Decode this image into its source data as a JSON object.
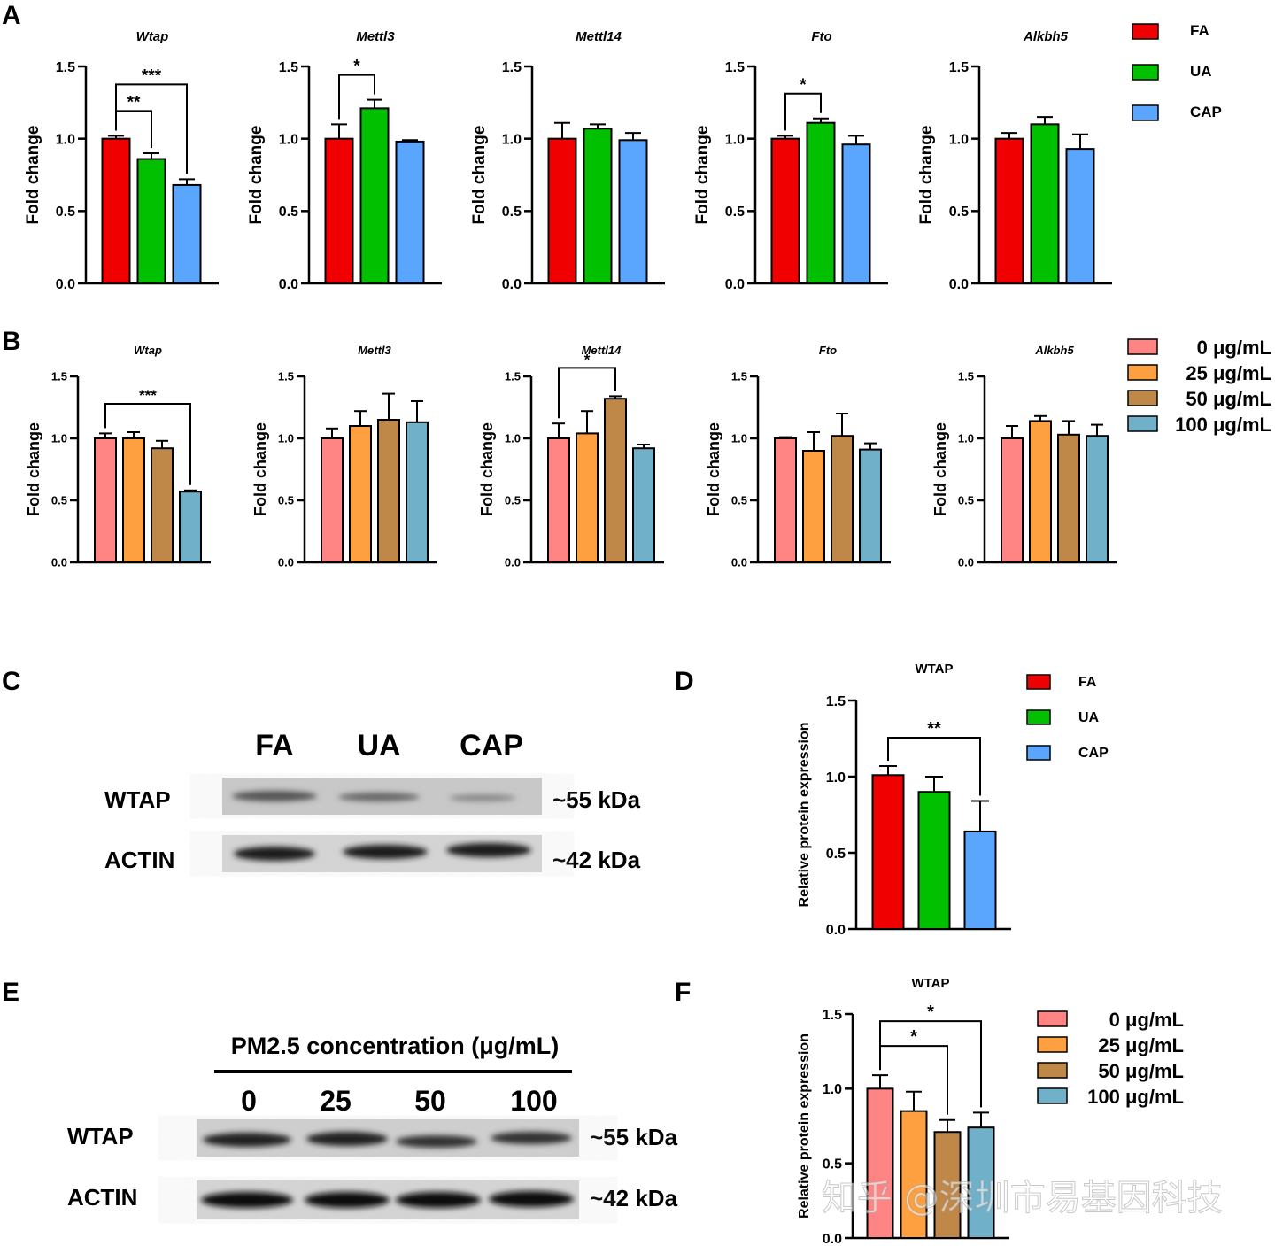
{
  "panels": [
    "A",
    "B",
    "C",
    "D",
    "E",
    "F"
  ],
  "colors": {
    "FA": "#f00000",
    "UA": "#00c000",
    "CAP": "#5aa6ff",
    "c0": "#ff8585",
    "c25": "#ffa040",
    "c50": "#c08848",
    "c100": "#70b0c8"
  },
  "chart_data": [
    {
      "type": "bar",
      "panel": "A",
      "ylabel": "Fold change",
      "ylim": [
        0,
        1.5
      ],
      "yticks": [
        "0.0",
        "0.5",
        "1.0",
        "1.5"
      ],
      "series_names": [
        "FA",
        "UA",
        "CAP"
      ],
      "groups": [
        {
          "title": "Wtap",
          "values": [
            1.0,
            0.86,
            0.68
          ],
          "errors": [
            0.02,
            0.04,
            0.04
          ],
          "sig": [
            {
              "from": 0,
              "to": 1,
              "label": "**"
            },
            {
              "from": 0,
              "to": 2,
              "label": "***"
            }
          ]
        },
        {
          "title": "Mettl3",
          "values": [
            1.0,
            1.21,
            0.98
          ],
          "errors": [
            0.1,
            0.06,
            0.01
          ],
          "sig": [
            {
              "from": 0,
              "to": 1,
              "label": "*"
            }
          ]
        },
        {
          "title": "Mettl14",
          "values": [
            1.0,
            1.07,
            0.99
          ],
          "errors": [
            0.11,
            0.03,
            0.05
          ],
          "sig": []
        },
        {
          "title": "Fto",
          "values": [
            1.0,
            1.11,
            0.96
          ],
          "errors": [
            0.02,
            0.03,
            0.06
          ],
          "sig": [
            {
              "from": 0,
              "to": 1,
              "label": "*"
            }
          ]
        },
        {
          "title": "Alkbh5",
          "values": [
            1.0,
            1.1,
            0.93
          ],
          "errors": [
            0.04,
            0.05,
            0.1
          ],
          "sig": []
        }
      ],
      "legend": [
        "FA",
        "UA",
        "CAP"
      ]
    },
    {
      "type": "bar",
      "panel": "B",
      "ylabel": "Fold change",
      "ylim": [
        0,
        1.5
      ],
      "yticks": [
        "0.0",
        "0.5",
        "1.0",
        "1.5"
      ],
      "series_names": [
        "0 μg/mL",
        "25 μg/mL",
        "50 μg/mL",
        "100 μg/mL"
      ],
      "groups": [
        {
          "title": "Wtap",
          "values": [
            1.0,
            1.0,
            0.92,
            0.57
          ],
          "errors": [
            0.04,
            0.05,
            0.06,
            0.01
          ],
          "sig": [
            {
              "from": 0,
              "to": 3,
              "label": "***"
            }
          ]
        },
        {
          "title": "Mettl3",
          "values": [
            1.0,
            1.1,
            1.15,
            1.13
          ],
          "errors": [
            0.08,
            0.12,
            0.21,
            0.17
          ],
          "sig": []
        },
        {
          "title": "Mettl14",
          "values": [
            1.0,
            1.04,
            1.32,
            0.92
          ],
          "errors": [
            0.12,
            0.18,
            0.02,
            0.03
          ],
          "sig": [
            {
              "from": 0,
              "to": 2,
              "label": "*"
            }
          ]
        },
        {
          "title": "Fto",
          "values": [
            1.0,
            0.9,
            1.02,
            0.91
          ],
          "errors": [
            0.01,
            0.15,
            0.18,
            0.05
          ],
          "sig": []
        },
        {
          "title": "Alkbh5",
          "values": [
            1.0,
            1.14,
            1.03,
            1.02
          ],
          "errors": [
            0.1,
            0.04,
            0.11,
            0.09
          ],
          "sig": []
        }
      ],
      "legend": [
        "0 μg/mL",
        "25 μg/mL",
        "50 μg/mL",
        "100 μg/mL"
      ]
    },
    {
      "type": "bar",
      "panel": "D",
      "title": "WTAP",
      "ylabel": "Relative protein expression",
      "ylim": [
        0,
        1.5
      ],
      "yticks": [
        "0.0",
        "0.5",
        "1.0",
        "1.5"
      ],
      "categories": [
        "FA",
        "UA",
        "CAP"
      ],
      "values": [
        1.01,
        0.9,
        0.64
      ],
      "errors": [
        0.06,
        0.1,
        0.2
      ],
      "sig": [
        {
          "from": 0,
          "to": 2,
          "label": "**"
        }
      ],
      "legend": [
        "FA",
        "UA",
        "CAP"
      ]
    },
    {
      "type": "bar",
      "panel": "F",
      "title": "WTAP",
      "ylabel": "Relative protein expression",
      "ylim": [
        0,
        1.5
      ],
      "yticks": [
        "0.0",
        "0.5",
        "1.0",
        "1.5"
      ],
      "categories": [
        "0 μg/mL",
        "25 μg/mL",
        "50 μg/mL",
        "100 μg/mL"
      ],
      "values": [
        1.0,
        0.85,
        0.71,
        0.74
      ],
      "errors": [
        0.09,
        0.13,
        0.08,
        0.1
      ],
      "sig": [
        {
          "from": 0,
          "to": 2,
          "label": "*"
        },
        {
          "from": 0,
          "to": 3,
          "label": "*"
        }
      ],
      "legend": [
        "0 μg/mL",
        "25 μg/mL",
        "50 μg/mL",
        "100 μg/mL"
      ]
    }
  ],
  "blot_C": {
    "lanes": [
      "FA",
      "UA",
      "CAP"
    ],
    "rows": [
      {
        "label": "WTAP",
        "size": "~55 kDa"
      },
      {
        "label": "ACTIN",
        "size": "~42 kDa"
      }
    ]
  },
  "blot_E": {
    "header": "PM2.5 concentration (μg/mL)",
    "lanes": [
      "0",
      "25",
      "50",
      "100"
    ],
    "rows": [
      {
        "label": "WTAP",
        "size": "~55 kDa"
      },
      {
        "label": "ACTIN",
        "size": "~42 kDa"
      }
    ]
  },
  "watermark": "知乎 @深圳市易基因科技"
}
